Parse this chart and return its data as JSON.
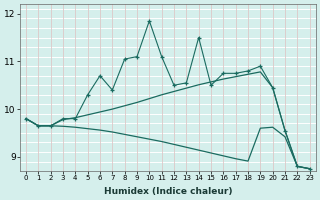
{
  "xlabel": "Humidex (Indice chaleur)",
  "background_color": "#d5efec",
  "grid_color_h": "#ffffff",
  "grid_color_v": "#ddc8c8",
  "line_color": "#1a6b60",
  "x_data": [
    0,
    1,
    2,
    3,
    4,
    5,
    6,
    7,
    8,
    9,
    10,
    11,
    12,
    13,
    14,
    15,
    16,
    17,
    18,
    19,
    20,
    21,
    22,
    23
  ],
  "line1_y": [
    9.8,
    9.65,
    9.65,
    9.8,
    9.8,
    10.3,
    10.7,
    10.4,
    11.05,
    11.1,
    11.85,
    11.1,
    10.5,
    10.55,
    11.5,
    10.5,
    10.75,
    10.75,
    10.8,
    10.9,
    10.45,
    9.55,
    8.8,
    8.75
  ],
  "line2_y": [
    9.8,
    9.65,
    9.65,
    9.78,
    9.82,
    9.88,
    9.94,
    10.0,
    10.07,
    10.14,
    10.22,
    10.3,
    10.37,
    10.44,
    10.51,
    10.57,
    10.63,
    10.68,
    10.73,
    10.78,
    10.45,
    9.55,
    8.8,
    8.75
  ],
  "line3_y": [
    9.8,
    9.65,
    9.65,
    9.64,
    9.62,
    9.59,
    9.56,
    9.52,
    9.47,
    9.42,
    9.37,
    9.32,
    9.26,
    9.2,
    9.14,
    9.08,
    9.02,
    8.96,
    8.91,
    9.6,
    9.62,
    9.42,
    8.8,
    8.75
  ],
  "ylim": [
    8.7,
    12.2
  ],
  "yticks": [
    9,
    10,
    11,
    12
  ],
  "xlim": [
    -0.5,
    23.5
  ]
}
